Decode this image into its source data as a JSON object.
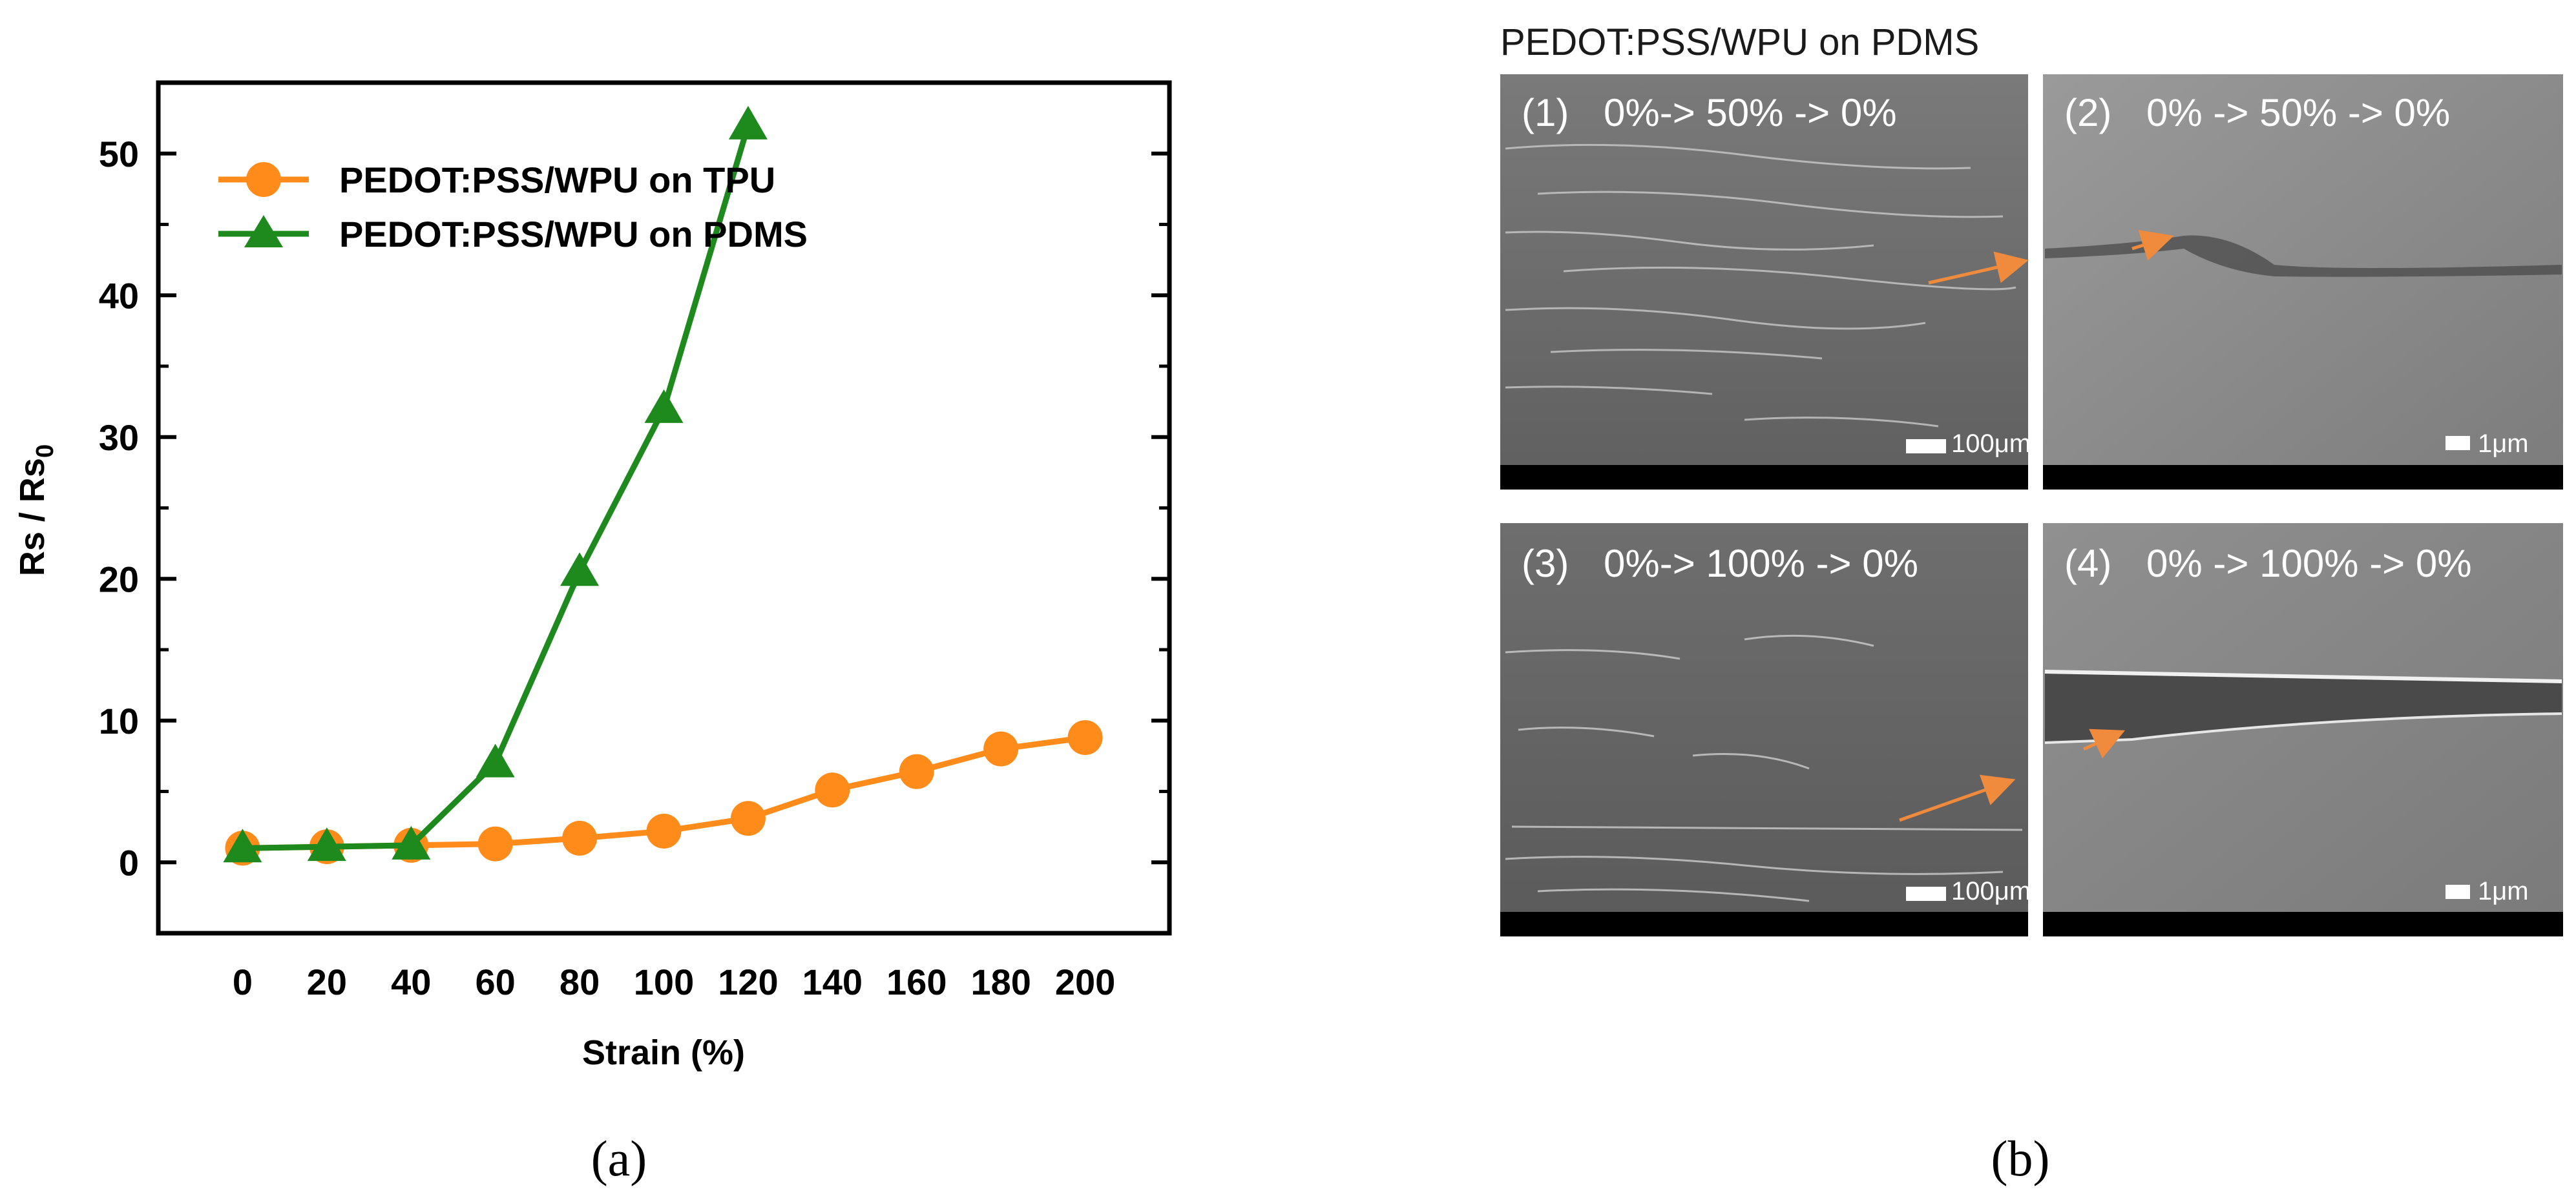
{
  "chart_data": {
    "type": "line",
    "xlabel": "Strain (%)",
    "ylabel_main": "Rs / Rs",
    "ylabel_sub": "0",
    "x": [
      0,
      20,
      40,
      60,
      80,
      100,
      120,
      140,
      160,
      180,
      200
    ],
    "xlim": [
      -20,
      220
    ],
    "ylim": [
      -5,
      55
    ],
    "xticks": [
      0,
      20,
      40,
      60,
      80,
      100,
      120,
      140,
      160,
      180,
      200
    ],
    "yticks": [
      0,
      10,
      20,
      30,
      40,
      50
    ],
    "legend_position": "top-left",
    "grid": false,
    "series": [
      {
        "name": "PEDOT:PSS/WPU on TPU",
        "marker": "circle",
        "color": "#FF8C1A",
        "x": [
          0,
          20,
          40,
          60,
          80,
          100,
          120,
          140,
          160,
          180,
          200
        ],
        "values": [
          1.0,
          1.1,
          1.2,
          1.3,
          1.7,
          2.2,
          3.1,
          5.1,
          6.4,
          8.0,
          8.8
        ]
      },
      {
        "name": "PEDOT:PSS/WPU on PDMS",
        "marker": "triangle",
        "color": "#1E8A1E",
        "x": [
          0,
          20,
          40,
          60,
          80,
          100,
          120
        ],
        "values": [
          1.0,
          1.1,
          1.2,
          7.0,
          20.5,
          32.0,
          52.0
        ]
      }
    ]
  },
  "caption_a": "(a)",
  "caption_b": "(b)",
  "panel_b": {
    "title": "PEDOT:PSS/WPU on PDMS",
    "images": [
      {
        "label": "(1)",
        "text": "0%-> 50% -> 0%",
        "scale": "100μm"
      },
      {
        "label": "(2)",
        "text": "0% -> 50% -> 0%",
        "scale": "1μm"
      },
      {
        "label": "(3)",
        "text": "0%-> 100% -> 0%",
        "scale": "100μm"
      },
      {
        "label": "(4)",
        "text": "0% -> 100% -> 0%",
        "scale": "1μm"
      }
    ]
  }
}
